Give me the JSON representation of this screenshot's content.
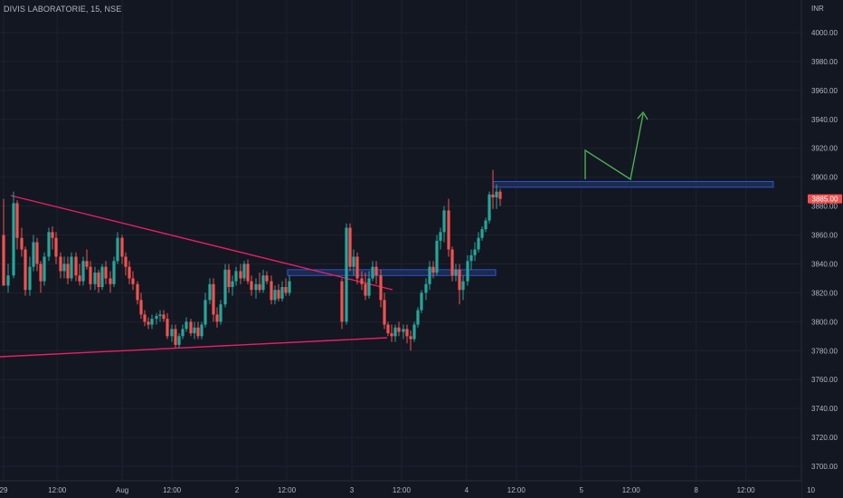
{
  "header": {
    "symbol_title": "DIVIS LABORATORIE, 15, NSE"
  },
  "chart_data": {
    "type": "candlestick",
    "currency_label": "INR",
    "last_price_label": "3885.00",
    "y_ticks": [
      "4000.00",
      "3980.00",
      "3960.00",
      "3940.00",
      "3920.00",
      "3900.00",
      "3880.00",
      "3860.00",
      "3840.00",
      "3820.00",
      "3800.00",
      "3780.00",
      "3760.00",
      "3740.00",
      "3720.00",
      "3700.00"
    ],
    "ylim": [
      3690,
      4010
    ],
    "x_ticks": [
      {
        "label": "29",
        "index": 0
      },
      {
        "label": "12:00",
        "index": 14
      },
      {
        "label": "Aug",
        "index": 31
      },
      {
        "label": "12:00",
        "index": 44
      },
      {
        "label": "2",
        "index": 61
      },
      {
        "label": "12:00",
        "index": 74
      },
      {
        "label": "3",
        "index": 91
      },
      {
        "label": "12:00",
        "index": 104
      },
      {
        "label": "4",
        "index": 121
      },
      {
        "label": "12:00",
        "index": 134
      },
      {
        "label": "5",
        "index": 151
      },
      {
        "label": "12:00",
        "index": 164
      },
      {
        "label": "8",
        "index": 181
      },
      {
        "label": "12:00",
        "index": 194
      },
      {
        "label": "10",
        "index": 211
      }
    ],
    "candles": [
      [
        3860,
        3885,
        3825,
        3825
      ],
      [
        3825,
        3840,
        3820,
        3832
      ],
      [
        3832,
        3890,
        3830,
        3882
      ],
      [
        3882,
        3884,
        3850,
        3858
      ],
      [
        3858,
        3865,
        3845,
        3850
      ],
      [
        3850,
        3852,
        3818,
        3822
      ],
      [
        3822,
        3845,
        3818,
        3838
      ],
      [
        3838,
        3860,
        3835,
        3855
      ],
      [
        3855,
        3858,
        3835,
        3840
      ],
      [
        3840,
        3842,
        3820,
        3828
      ],
      [
        3828,
        3848,
        3825,
        3845
      ],
      [
        3845,
        3865,
        3842,
        3862
      ],
      [
        3862,
        3866,
        3850,
        3858
      ],
      [
        3858,
        3862,
        3840,
        3845
      ],
      [
        3845,
        3848,
        3830,
        3835
      ],
      [
        3835,
        3845,
        3830,
        3840
      ],
      [
        3840,
        3845,
        3826,
        3830
      ],
      [
        3830,
        3848,
        3828,
        3845
      ],
      [
        3845,
        3848,
        3828,
        3832
      ],
      [
        3832,
        3840,
        3825,
        3828
      ],
      [
        3828,
        3845,
        3825,
        3842
      ],
      [
        3842,
        3850,
        3836,
        3838
      ],
      [
        3838,
        3842,
        3822,
        3826
      ],
      [
        3826,
        3838,
        3822,
        3834
      ],
      [
        3834,
        3836,
        3820,
        3824
      ],
      [
        3824,
        3840,
        3822,
        3838
      ],
      [
        3838,
        3842,
        3826,
        3830
      ],
      [
        3830,
        3835,
        3820,
        3826
      ],
      [
        3826,
        3845,
        3824,
        3842
      ],
      [
        3842,
        3862,
        3840,
        3858
      ],
      [
        3858,
        3860,
        3840,
        3845
      ],
      [
        3845,
        3848,
        3832,
        3838
      ],
      [
        3838,
        3842,
        3826,
        3830
      ],
      [
        3830,
        3835,
        3822,
        3826
      ],
      [
        3826,
        3828,
        3812,
        3815
      ],
      [
        3815,
        3820,
        3802,
        3805
      ],
      [
        3805,
        3808,
        3797,
        3800
      ],
      [
        3800,
        3803,
        3795,
        3798
      ],
      [
        3798,
        3805,
        3795,
        3802
      ],
      [
        3802,
        3806,
        3798,
        3804
      ],
      [
        3804,
        3808,
        3800,
        3805
      ],
      [
        3805,
        3808,
        3800,
        3802
      ],
      [
        3802,
        3806,
        3788,
        3790
      ],
      [
        3790,
        3798,
        3786,
        3795
      ],
      [
        3795,
        3798,
        3782,
        3784
      ],
      [
        3784,
        3792,
        3782,
        3790
      ],
      [
        3790,
        3798,
        3788,
        3795
      ],
      [
        3795,
        3803,
        3793,
        3800
      ],
      [
        3800,
        3802,
        3790,
        3792
      ],
      [
        3792,
        3800,
        3788,
        3796
      ],
      [
        3796,
        3800,
        3788,
        3790
      ],
      [
        3790,
        3800,
        3788,
        3798
      ],
      [
        3798,
        3820,
        3796,
        3815
      ],
      [
        3815,
        3830,
        3812,
        3826
      ],
      [
        3826,
        3830,
        3800,
        3805
      ],
      [
        3805,
        3810,
        3796,
        3800
      ],
      [
        3800,
        3815,
        3798,
        3812
      ],
      [
        3812,
        3840,
        3810,
        3836
      ],
      [
        3836,
        3840,
        3820,
        3824
      ],
      [
        3824,
        3832,
        3818,
        3828
      ],
      [
        3828,
        3838,
        3825,
        3835
      ],
      [
        3835,
        3840,
        3826,
        3830
      ],
      [
        3830,
        3842,
        3828,
        3840
      ],
      [
        3840,
        3843,
        3826,
        3828
      ],
      [
        3828,
        3832,
        3818,
        3822
      ],
      [
        3822,
        3830,
        3816,
        3826
      ],
      [
        3826,
        3834,
        3820,
        3822
      ],
      [
        3822,
        3836,
        3820,
        3832
      ],
      [
        3832,
        3835,
        3826,
        3828
      ],
      [
        3828,
        3832,
        3812,
        3815
      ],
      [
        3815,
        3825,
        3812,
        3822
      ],
      [
        3822,
        3826,
        3814,
        3816
      ],
      [
        3816,
        3828,
        3814,
        3824
      ],
      [
        3824,
        3830,
        3818,
        3820
      ],
      [
        3820,
        3832,
        3818,
        3828
      ],
      [
        3828,
        3830,
        3795,
        3800
      ],
      [
        3800,
        3868,
        3798,
        3865
      ],
      [
        3865,
        3868,
        3835,
        3838
      ],
      [
        3838,
        3850,
        3832,
        3845
      ],
      [
        3845,
        3848,
        3826,
        3830
      ],
      [
        3830,
        3835,
        3822,
        3826
      ],
      [
        3826,
        3834,
        3815,
        3818
      ],
      [
        3818,
        3835,
        3816,
        3830
      ],
      [
        3830,
        3842,
        3828,
        3838
      ],
      [
        3838,
        3842,
        3826,
        3832
      ],
      [
        3832,
        3836,
        3810,
        3815
      ],
      [
        3815,
        3820,
        3795,
        3798
      ],
      [
        3798,
        3800,
        3790,
        3792
      ],
      [
        3792,
        3798,
        3786,
        3790
      ],
      [
        3790,
        3798,
        3786,
        3796
      ],
      [
        3796,
        3800,
        3790,
        3793
      ],
      [
        3793,
        3798,
        3788,
        3795
      ],
      [
        3795,
        3798,
        3785,
        3790
      ],
      [
        3790,
        3794,
        3780,
        3788
      ],
      [
        3788,
        3800,
        3786,
        3798
      ],
      [
        3798,
        3810,
        3796,
        3808
      ],
      [
        3808,
        3822,
        3806,
        3820
      ],
      [
        3820,
        3830,
        3815,
        3826
      ],
      [
        3826,
        3842,
        3822,
        3838
      ],
      [
        3838,
        3842,
        3830,
        3834
      ],
      [
        3834,
        3860,
        3832,
        3856
      ],
      [
        3856,
        3865,
        3850,
        3862
      ],
      [
        3862,
        3880,
        3855,
        3877
      ],
      [
        3877,
        3885,
        3845,
        3850
      ],
      [
        3850,
        3852,
        3828,
        3832
      ],
      [
        3832,
        3840,
        3828,
        3836
      ],
      [
        3836,
        3840,
        3812,
        3822
      ],
      [
        3822,
        3832,
        3815,
        3828
      ],
      [
        3828,
        3846,
        3825,
        3842
      ],
      [
        3842,
        3850,
        3836,
        3846
      ],
      [
        3846,
        3855,
        3842,
        3850
      ],
      [
        3850,
        3862,
        3848,
        3858
      ],
      [
        3858,
        3866,
        3856,
        3864
      ],
      [
        3864,
        3872,
        3862,
        3870
      ],
      [
        3870,
        3890,
        3868,
        3888
      ],
      [
        3888,
        3905,
        3878,
        3886
      ],
      [
        3886,
        3895,
        3878,
        3890
      ],
      [
        3890,
        3892,
        3880,
        3885
      ]
    ],
    "candle_x": [
      4,
      9,
      15,
      19,
      24,
      28,
      33,
      37,
      41,
      45,
      49,
      54,
      58,
      62,
      67,
      71,
      75,
      79,
      84,
      88,
      92,
      96,
      100,
      105,
      109,
      113,
      117,
      122,
      126,
      130,
      135,
      139,
      143,
      147,
      152,
      156,
      160,
      164,
      168,
      173,
      177,
      181,
      185,
      190,
      194,
      198,
      202,
      206,
      211,
      215,
      219,
      223,
      227,
      232,
      236,
      240,
      244,
      249,
      253,
      257,
      261,
      266,
      270,
      274,
      278,
      283,
      287,
      291,
      295,
      300,
      304,
      308,
      312,
      316,
      320,
      378,
      383,
      387,
      391,
      395,
      400,
      404,
      408,
      412,
      416,
      421,
      425,
      429,
      433,
      437,
      441,
      446,
      450,
      454,
      458,
      462,
      466,
      471,
      475,
      479,
      483,
      487,
      491,
      496,
      500,
      504,
      508,
      512,
      517,
      521,
      525,
      529,
      533,
      537,
      541,
      545,
      549,
      553
    ],
    "annotations": {
      "resistance_zone": {
        "price_low": 3893,
        "price_high": 3897
      },
      "support_zone": {
        "price_low": 3832,
        "price_high": 3836
      },
      "upper_trendline": {
        "from": [
          3875,
          3825
        ]
      },
      "lower_trendline": {
        "from": [
          3780,
          3800
        ]
      },
      "projection_path": [
        3918,
        3900,
        3945
      ]
    },
    "colors": {
      "up": "#26a69a",
      "down": "#ef5350",
      "background": "#131722",
      "grid": "#1e222d",
      "axis_text": "#b2b5be",
      "trendline": "#e91e63",
      "zone_fill": "#1e2a4a",
      "zone_border": "#2962ff",
      "projection": "#4caf50",
      "price_tag": "#ef5350"
    }
  }
}
